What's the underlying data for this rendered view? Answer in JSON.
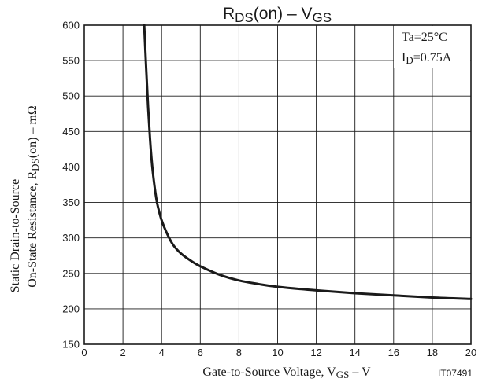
{
  "chart_data": {
    "type": "line",
    "title": {
      "main": "R",
      "sub": "DS",
      "mid": "(on)  –  V",
      "sub2": "GS"
    },
    "xlabel": {
      "main": "Gate-to-Source Voltage, V",
      "sub": "GS",
      "unit": "  –  V"
    },
    "ylabel": {
      "line1": "Static Drain-to-Source",
      "line2_pre": "On-State Resistance, R",
      "line2_sub": "DS",
      "line2_post": "(on)  –  mΩ"
    },
    "x_ticks": [
      "0",
      "2",
      "4",
      "6",
      "8",
      "10",
      "12",
      "14",
      "16",
      "18",
      "20"
    ],
    "y_ticks": [
      "150",
      "200",
      "250",
      "300",
      "350",
      "400",
      "450",
      "500",
      "550",
      "600"
    ],
    "xlim": [
      0,
      20
    ],
    "ylim": [
      150,
      600
    ],
    "grid": true,
    "conditions": {
      "line1": "Ta=25°C",
      "line2_pre": "I",
      "line2_sub": "D",
      "line2_post": "=0.75A"
    },
    "code": "IT07491",
    "series": [
      {
        "color": "#1a1a1a",
        "x": [
          3.1,
          3.2,
          3.3,
          3.4,
          3.5,
          3.6,
          3.7,
          3.8,
          4.0,
          4.3,
          4.6,
          5.0,
          5.5,
          6.0,
          7.0,
          8.0,
          9.0,
          10.0,
          12.0,
          14.0,
          16.0,
          18.0,
          20.0
        ],
        "y": [
          600,
          540,
          485,
          440,
          405,
          380,
          360,
          345,
          325,
          305,
          290,
          278,
          268,
          260,
          248,
          240,
          235,
          231,
          226,
          222,
          219,
          216,
          214
        ]
      }
    ]
  }
}
